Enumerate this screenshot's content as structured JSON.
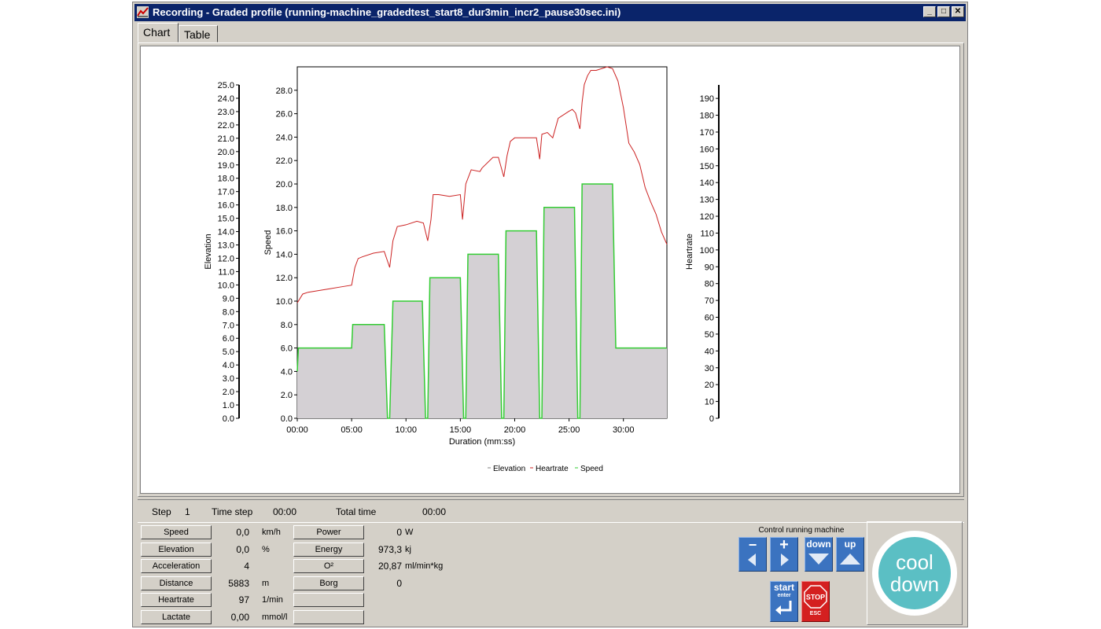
{
  "window": {
    "title": "Recording - Graded profile (running-machine_gradedtest_start8_dur3min_incr2_pause30sec.ini)",
    "controls": {
      "minimize": "_",
      "maximize": "□",
      "close": "✕"
    }
  },
  "tabs": [
    {
      "label": "Chart",
      "active": true
    },
    {
      "label": "Table",
      "active": false
    }
  ],
  "chart_data": {
    "type": "line",
    "xlabel": "Duration (mm:ss)",
    "x_ticks": [
      "00:00",
      "05:00",
      "10:00",
      "15:00",
      "20:00",
      "25:00",
      "30:00"
    ],
    "xlim_minutes": [
      0,
      34
    ],
    "axes": {
      "elevation": {
        "label": "Elevation",
        "ylim": [
          0,
          25
        ],
        "ticks": [
          "0.0",
          "1.0",
          "2.0",
          "3.0",
          "4.0",
          "5.0",
          "6.0",
          "7.0",
          "8.0",
          "9.0",
          "10.0",
          "11.0",
          "12.0",
          "13.0",
          "14.0",
          "15.0",
          "16.0",
          "17.0",
          "18.0",
          "19.0",
          "20.0",
          "21.0",
          "22.0",
          "23.0",
          "24.0",
          "25.0"
        ]
      },
      "speed": {
        "label": "Speed",
        "ylim": [
          0,
          30
        ],
        "ticks": [
          "0.0",
          "2.0",
          "4.0",
          "6.0",
          "8.0",
          "10.0",
          "12.0",
          "14.0",
          "16.0",
          "18.0",
          "20.0",
          "22.0",
          "24.0",
          "26.0",
          "28.0"
        ]
      },
      "heartrate": {
        "label": "Heartrate",
        "ylim": [
          0,
          198
        ],
        "ticks": [
          "0",
          "10",
          "20",
          "30",
          "40",
          "50",
          "60",
          "70",
          "80",
          "90",
          "100",
          "110",
          "120",
          "130",
          "140",
          "150",
          "160",
          "170",
          "180",
          "190"
        ]
      }
    },
    "legend": [
      "Elevation",
      "Heartrate",
      "Speed"
    ],
    "legend_position": "bottom-center",
    "series": [
      {
        "name": "Speed",
        "axis": "speed",
        "color": "#33cc33",
        "x": [
          0,
          0.1,
          5,
          5.1,
          8,
          8.3,
          8.5,
          8.8,
          11.5,
          11.8,
          12,
          12.2,
          15,
          15.3,
          15.5,
          15.7,
          18.5,
          18.8,
          19,
          19.2,
          22,
          22.3,
          22.5,
          22.7,
          25.5,
          25.8,
          26,
          26.2,
          29,
          29.3,
          34
        ],
        "y": [
          4,
          6,
          6,
          8,
          8,
          0,
          0,
          10,
          10,
          0,
          0,
          12,
          12,
          0,
          0,
          14,
          14,
          0,
          0,
          16,
          16,
          0,
          0,
          18,
          18,
          0,
          0,
          20,
          20,
          6,
          6
        ]
      },
      {
        "name": "Heartrate",
        "axis": "heartrate",
        "color": "#cc2222",
        "x": [
          0,
          0.5,
          1,
          2,
          3,
          4,
          5,
          5.3,
          5.6,
          6,
          7,
          8,
          8.5,
          8.8,
          9.2,
          10,
          11,
          11.6,
          12,
          12.3,
          12.5,
          13,
          14,
          15,
          15.2,
          15.5,
          16,
          16.8,
          17,
          18,
          18.5,
          19,
          19.3,
          19.6,
          20,
          21,
          22,
          22.3,
          22.5,
          23,
          23.5,
          24,
          25,
          25.3,
          25.6,
          26,
          26.2,
          26.4,
          26.7,
          27,
          27.5,
          28,
          28.5,
          29,
          29.5,
          30,
          30.5,
          31,
          31.5,
          32,
          32.5,
          33,
          33.5,
          34
        ],
        "y": [
          65,
          70,
          71,
          72,
          73,
          74,
          75,
          85,
          90,
          91,
          93,
          94,
          85,
          100,
          108,
          109,
          111,
          110,
          100,
          112,
          126,
          126,
          125,
          126,
          112,
          132,
          140,
          139,
          141,
          147,
          147,
          136,
          148,
          156,
          158,
          158,
          158,
          146,
          160,
          161,
          158,
          169,
          173,
          174,
          172,
          163,
          178,
          188,
          193,
          196,
          196,
          197,
          198,
          197,
          190,
          175,
          155,
          150,
          143,
          130,
          122,
          115,
          105,
          98
        ]
      }
    ]
  },
  "info_strip": {
    "step_label": "Step",
    "step_value": "1",
    "time_step_label": "Time step",
    "time_step_value": "00:00",
    "total_time_label": "Total time",
    "total_time_value": "00:00"
  },
  "metrics_left": [
    {
      "label": "Speed",
      "value": "0,0",
      "unit": "km/h"
    },
    {
      "label": "Elevation",
      "value": "0,0",
      "unit": "%"
    },
    {
      "label": "Acceleration",
      "value": "4",
      "unit": ""
    },
    {
      "label": "Distance",
      "value": "5883",
      "unit": "m"
    },
    {
      "label": "Heartrate",
      "value": "97",
      "unit": "1/min"
    },
    {
      "label": "Lactate",
      "value": "0,00",
      "unit": "mmol/l"
    }
  ],
  "metrics_right": [
    {
      "label": "Power",
      "value": "0",
      "unit": "W"
    },
    {
      "label": "Energy",
      "value": "973,3",
      "unit": "kj"
    },
    {
      "label": "O²",
      "value": "20,87",
      "unit": "ml/min*kg"
    },
    {
      "label": "Borg",
      "value": "0",
      "unit": ""
    },
    {
      "label": "",
      "value": "",
      "unit": ""
    },
    {
      "label": "",
      "value": "",
      "unit": ""
    }
  ],
  "control": {
    "title": "Control running machine",
    "minus_label": "−",
    "plus_label": "+",
    "down_label": "down",
    "up_label": "up",
    "start_label": "start",
    "start_sub": "enter",
    "stop_label": "STOP",
    "stop_sub": "ESC"
  },
  "cooldown": {
    "line1": "cool",
    "line2": "down",
    "color": "#5bbfc4"
  }
}
